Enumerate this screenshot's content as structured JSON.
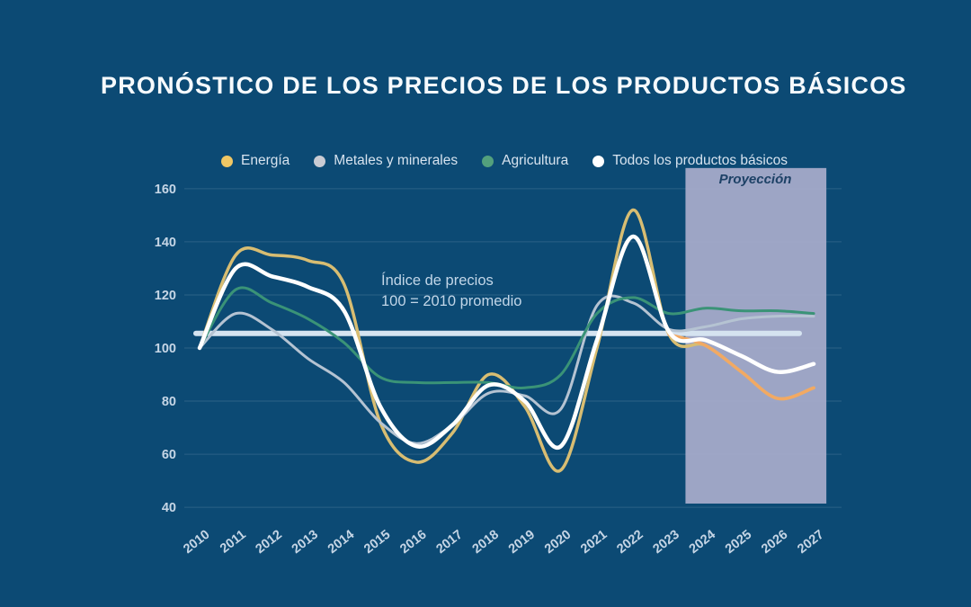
{
  "title": "PRONÓSTICO DE LOS PRECIOS DE LOS PRODUCTOS BÁSICOS",
  "legend": [
    {
      "id": "energia",
      "label": "Energía",
      "color": "#F0C764"
    },
    {
      "id": "metales",
      "label": "Metales y minerales",
      "color": "#C9CBD3"
    },
    {
      "id": "agricultura",
      "label": "Agricultura",
      "color": "#53A07D"
    },
    {
      "id": "todos",
      "label": "Todos los productos básicos",
      "color": "#FFFFFF"
    }
  ],
  "annotation": {
    "line1": "Índice de precios",
    "line2": "100 =  2010 promedio"
  },
  "chart_data": {
    "type": "line",
    "title": "PRONÓSTICO DE LOS PRECIOS DE LOS PRODUCTOS BÁSICOS",
    "x": [
      2010,
      2011,
      2012,
      2013,
      2014,
      2015,
      2016,
      2017,
      2018,
      2019,
      2020,
      2021,
      2022,
      2023,
      2024,
      2025,
      2026,
      2027
    ],
    "series": [
      {
        "id": "energia",
        "name": "Energía",
        "color": "#D8BD72",
        "projection_color": "#F2A963",
        "projection_from": 2023,
        "width": 3.5,
        "values": [
          100,
          135,
          135,
          133,
          124,
          72,
          57,
          68,
          90,
          78,
          54,
          100,
          152,
          105,
          101,
          91,
          81,
          85
        ]
      },
      {
        "id": "metales",
        "name": "Metales y minerales",
        "color": "#B5C3D2",
        "width": 3,
        "values": [
          100,
          113,
          107,
          96,
          87,
          72,
          64,
          71,
          83,
          82,
          77,
          116,
          117,
          107,
          108,
          111,
          112,
          112
        ]
      },
      {
        "id": "agricultura",
        "name": "Agricultura",
        "color": "#3A9377",
        "width": 3,
        "values": [
          100,
          122,
          117,
          111,
          102,
          89,
          87,
          87,
          87,
          85,
          90,
          113,
          119,
          113,
          115,
          114,
          114,
          113
        ]
      },
      {
        "id": "todos",
        "name": "Todos los productos básicos",
        "color": "#FFFFFF",
        "width": 4.5,
        "values": [
          100,
          130,
          127,
          123,
          114,
          78,
          63,
          71,
          86,
          80,
          63,
          103,
          142,
          106,
          103,
          97,
          91,
          94
        ]
      }
    ],
    "ylim": [
      40,
      160
    ],
    "yticks": [
      40,
      60,
      80,
      100,
      120,
      140,
      160
    ],
    "grid": true,
    "legend_position": "top",
    "reference_line": {
      "value": 105.5,
      "x_start": 2010,
      "x_end": 2026.6,
      "color": "#D5E3F0"
    },
    "projection_band": {
      "label": "Proyección",
      "x_start": 2023.45,
      "x_end": 2027.35,
      "y_top_value": 167.8,
      "y_bottom_value": 41.4,
      "color": "#A7ABCA"
    }
  }
}
